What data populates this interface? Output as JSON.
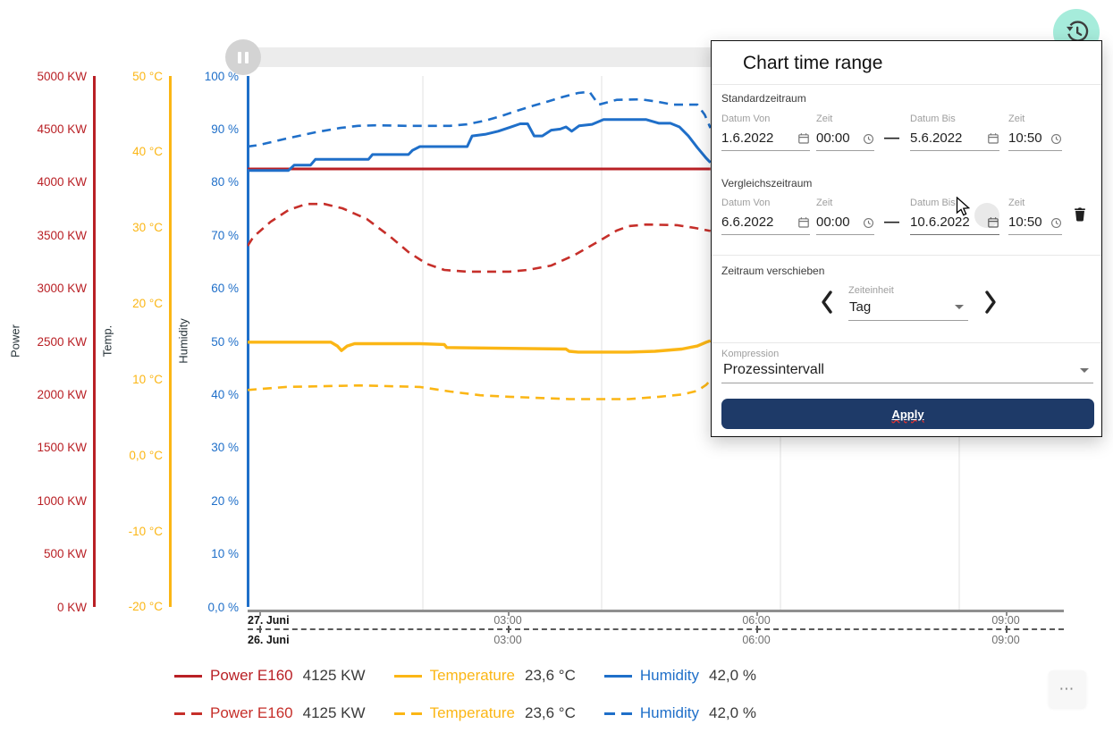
{
  "toolbar": {
    "pause_button": {
      "icon": "pause-icon"
    },
    "history_button": {
      "icon": "history-icon",
      "bg": "#a6ecdb"
    }
  },
  "dialog": {
    "title": "Chart time range",
    "accent": "#1e3a68",
    "standard": {
      "section_label": "Standardzeitraum",
      "date_from": {
        "label": "Datum Von",
        "value": "1.6.2022"
      },
      "time_from": {
        "label": "Zeit",
        "value": "00:00"
      },
      "range_dash": "—",
      "date_to": {
        "label": "Datum Bis",
        "value": "5.6.2022"
      },
      "time_to": {
        "label": "Zeit",
        "value": "10:50"
      }
    },
    "comparison": {
      "section_label": "Vergleichszeitraum",
      "date_from": {
        "label": "Datum Von",
        "value": "6.6.2022"
      },
      "time_from": {
        "label": "Zeit",
        "value": "00:00"
      },
      "range_dash": "—",
      "date_to": {
        "label": "Datum Bis",
        "value": "10.6.2022"
      },
      "time_to": {
        "label": "Zeit",
        "value": "10:50"
      }
    },
    "shift": {
      "section_label": "Zeitraum verschieben",
      "unit_label": "Zeiteinheit",
      "unit_value": "Tag"
    },
    "compression": {
      "label": "Kompression",
      "value": "Prozessintervall"
    },
    "apply_label": "Apply"
  },
  "chart": {
    "y_axes": [
      {
        "title": "Power",
        "color": "#b92025",
        "labels": [
          "5000 KW",
          "4500 KW",
          "4000 KW",
          "3500 KW",
          "3000 KW",
          "2500 KW",
          "2000 KW",
          "1500 KW",
          "1000 KW",
          "500 KW",
          "0 KW"
        ]
      },
      {
        "title": "Temp.",
        "color": "#fbb615",
        "labels": [
          "50 °C",
          "40 °C",
          "30 °C",
          "20 °C",
          "10 °C",
          "0,0 °C",
          "-10 °C",
          "-20 °C"
        ]
      },
      {
        "title": "Humidity",
        "color": "#1f6fc9",
        "labels": [
          "100 %",
          "90 %",
          "80 %",
          "70 %",
          "60 %",
          "50 %",
          "40 %",
          "30 %",
          "20 %",
          "10 %",
          "0,0 %"
        ]
      }
    ],
    "x_axis": {
      "rows": [
        {
          "date": "27. Juni",
          "times": [
            "03:00",
            "06:00",
            "09:00"
          ]
        },
        {
          "date": "26. Juni",
          "times": [
            "03:00",
            "06:00",
            "09:00"
          ]
        }
      ]
    }
  },
  "chart_data": {
    "type": "line",
    "title": "",
    "x_unit": "fraction_of_visible_time_range",
    "x_axis": {
      "primary_date": "27. Juni",
      "comparison_date": "26. Juni",
      "tick_labels": [
        "03:00",
        "06:00",
        "09:00"
      ]
    },
    "axes": {
      "power": {
        "label": "Power",
        "unit": "KW",
        "range": [
          0,
          5000
        ]
      },
      "temp": {
        "label": "Temp.",
        "unit": "°C",
        "range": [
          -20,
          50
        ]
      },
      "humidity": {
        "label": "Humidity",
        "unit": "%",
        "range": [
          0,
          100
        ]
      }
    },
    "legend_position": "bottom",
    "grid": "vertical-only",
    "series": [
      {
        "name": "Power E160",
        "period": "current",
        "axis": "power",
        "color": "#b92025",
        "dashed": false,
        "width": 3,
        "legend_value": "4125 KW",
        "points": [
          [
            0,
            4125
          ],
          [
            0.567,
            4125
          ]
        ]
      },
      {
        "name": "Humidity",
        "period": "current",
        "axis": "humidity",
        "color": "#1f6fc9",
        "dashed": false,
        "width": 3,
        "legend_value": "42,0 %",
        "points": [
          [
            0,
            82.2
          ],
          [
            0.05,
            82.2
          ],
          [
            0.057,
            83.2
          ],
          [
            0.077,
            83.2
          ],
          [
            0.083,
            84.3
          ],
          [
            0.148,
            84.3
          ],
          [
            0.153,
            85.2
          ],
          [
            0.197,
            85.2
          ],
          [
            0.202,
            86
          ],
          [
            0.211,
            86.7
          ],
          [
            0.269,
            86.7
          ],
          [
            0.275,
            88.7
          ],
          [
            0.291,
            89
          ],
          [
            0.307,
            89.6
          ],
          [
            0.321,
            90.3
          ],
          [
            0.334,
            91
          ],
          [
            0.343,
            91
          ],
          [
            0.351,
            88.7
          ],
          [
            0.361,
            88.7
          ],
          [
            0.372,
            89.8
          ],
          [
            0.383,
            90
          ],
          [
            0.39,
            90.4
          ],
          [
            0.397,
            89.6
          ],
          [
            0.406,
            90.6
          ],
          [
            0.422,
            90.9
          ],
          [
            0.436,
            91.8
          ],
          [
            0.488,
            91.8
          ],
          [
            0.504,
            91.1
          ],
          [
            0.518,
            91.1
          ],
          [
            0.529,
            90.4
          ],
          [
            0.54,
            88.7
          ],
          [
            0.551,
            86.5
          ],
          [
            0.562,
            84.5
          ],
          [
            0.567,
            83.7
          ]
        ]
      },
      {
        "name": "Temperature",
        "period": "current",
        "axis": "temp",
        "color": "#fbb615",
        "dashed": false,
        "width": 3.4,
        "legend_value": "23,6 °C",
        "points": [
          [
            0,
            14.9
          ],
          [
            0.102,
            14.9
          ],
          [
            0.11,
            14.4
          ],
          [
            0.115,
            13.8
          ],
          [
            0.122,
            14.4
          ],
          [
            0.131,
            14.7
          ],
          [
            0.211,
            14.7
          ],
          [
            0.241,
            14.6
          ],
          [
            0.244,
            14.2
          ],
          [
            0.39,
            14
          ],
          [
            0.394,
            13.7
          ],
          [
            0.405,
            13.6
          ],
          [
            0.467,
            13.6
          ],
          [
            0.499,
            13.7
          ],
          [
            0.532,
            14
          ],
          [
            0.551,
            14.4
          ],
          [
            0.562,
            14.9
          ],
          [
            0.567,
            15.1
          ]
        ]
      },
      {
        "name": "Power E160",
        "period": "comparison",
        "axis": "power",
        "color": "#c62f2a",
        "dashed": true,
        "width": 2.6,
        "legend_value": "4125 KW",
        "points": [
          [
            0,
            3400
          ],
          [
            0.007,
            3485
          ],
          [
            0.028,
            3626
          ],
          [
            0.05,
            3737
          ],
          [
            0.072,
            3795
          ],
          [
            0.094,
            3795
          ],
          [
            0.116,
            3754
          ],
          [
            0.146,
            3653
          ],
          [
            0.175,
            3485
          ],
          [
            0.197,
            3342
          ],
          [
            0.219,
            3232
          ],
          [
            0.241,
            3173
          ],
          [
            0.269,
            3157
          ],
          [
            0.321,
            3157
          ],
          [
            0.343,
            3173
          ],
          [
            0.372,
            3215
          ],
          [
            0.401,
            3316
          ],
          [
            0.43,
            3443
          ],
          [
            0.452,
            3544
          ],
          [
            0.467,
            3586
          ],
          [
            0.488,
            3601
          ],
          [
            0.526,
            3595
          ],
          [
            0.548,
            3569
          ],
          [
            0.567,
            3540
          ]
        ]
      },
      {
        "name": "Humidity",
        "period": "comparison",
        "axis": "humidity",
        "color": "#1f6fc9",
        "dashed": true,
        "width": 2.6,
        "legend_value": "42,0 %",
        "points": [
          [
            0,
            86.7
          ],
          [
            0.014,
            87
          ],
          [
            0.047,
            88.2
          ],
          [
            0.083,
            89.4
          ],
          [
            0.113,
            90.2
          ],
          [
            0.135,
            90.6
          ],
          [
            0.157,
            90.7
          ],
          [
            0.197,
            90.6
          ],
          [
            0.248,
            90.6
          ],
          [
            0.269,
            90.9
          ],
          [
            0.291,
            91.6
          ],
          [
            0.31,
            92.4
          ],
          [
            0.329,
            93.4
          ],
          [
            0.35,
            94.4
          ],
          [
            0.368,
            95.2
          ],
          [
            0.387,
            96.1
          ],
          [
            0.405,
            96.8
          ],
          [
            0.419,
            97
          ],
          [
            0.43,
            94.6
          ],
          [
            0.452,
            95.5
          ],
          [
            0.482,
            95.6
          ],
          [
            0.504,
            95.1
          ],
          [
            0.521,
            94.6
          ],
          [
            0.551,
            94.6
          ],
          [
            0.56,
            92.7
          ],
          [
            0.567,
            90.2
          ]
        ]
      },
      {
        "name": "Temperature",
        "period": "comparison",
        "axis": "temp",
        "color": "#fbb615",
        "dashed": true,
        "width": 2.6,
        "legend_value": "23,6 °C",
        "points": [
          [
            0,
            8.6
          ],
          [
            0.047,
            9
          ],
          [
            0.138,
            9.2
          ],
          [
            0.211,
            9
          ],
          [
            0.248,
            8.4
          ],
          [
            0.285,
            7.9
          ],
          [
            0.321,
            7.7
          ],
          [
            0.394,
            7.4
          ],
          [
            0.43,
            7.4
          ],
          [
            0.467,
            7.4
          ],
          [
            0.504,
            7.7
          ],
          [
            0.532,
            8
          ],
          [
            0.551,
            8.5
          ],
          [
            0.562,
            9.3
          ],
          [
            0.567,
            9.9
          ]
        ]
      }
    ]
  },
  "legend": {
    "rows": [
      {
        "style": "solid",
        "items": [
          {
            "name": "Power E160",
            "value": "4125 KW",
            "color": "#b92025"
          },
          {
            "name": "Temperature",
            "value": "23,6 °C",
            "color": "#fbb615"
          },
          {
            "name": "Humidity",
            "value": "42,0 %",
            "color": "#1f6fc9"
          }
        ]
      },
      {
        "style": "dashed",
        "items": [
          {
            "name": "Power E160",
            "value": "4125 KW",
            "color": "#c62f2a"
          },
          {
            "name": "Temperature",
            "value": "23,6 °C",
            "color": "#fbb615"
          },
          {
            "name": "Humidity",
            "value": "42,0 %",
            "color": "#1f6fc9"
          }
        ]
      }
    ]
  },
  "footer": {
    "more_button": "⋯"
  }
}
